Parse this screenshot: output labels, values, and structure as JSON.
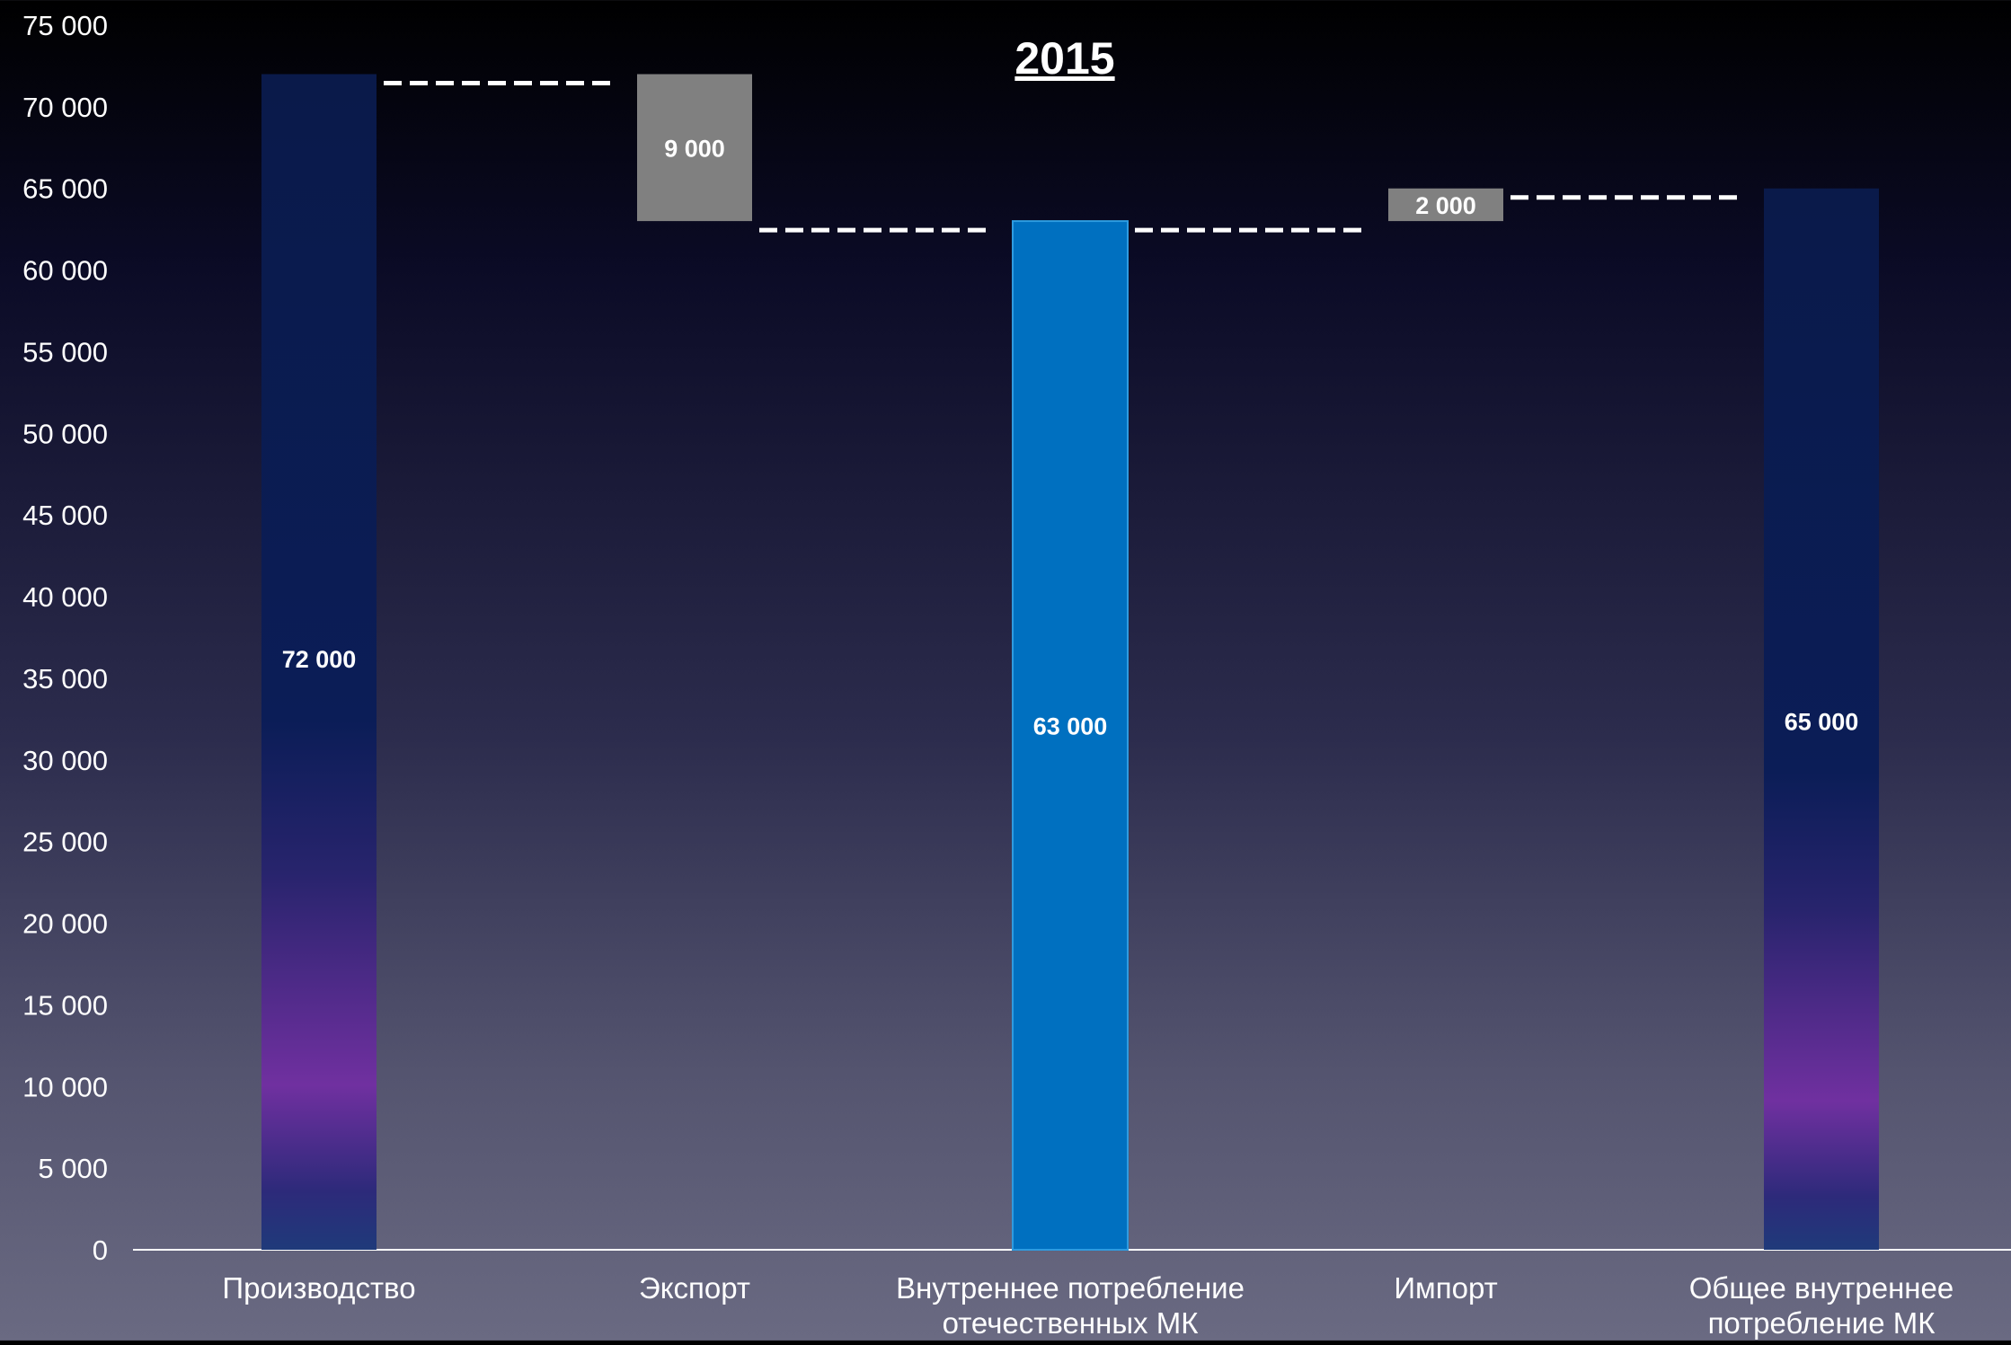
{
  "chart_data": {
    "type": "bar",
    "subtype": "waterfall",
    "title": "2015",
    "categories": [
      "Производство",
      "Экспорт",
      "Внутреннее потребление отечественных МК",
      "Импорт",
      "Общее внутреннее потребление МК"
    ],
    "category_label_lines": [
      [
        "Производство"
      ],
      [
        "Экспорт"
      ],
      [
        "Внутреннее потребление",
        "отечественных МК"
      ],
      [
        "Импорт"
      ],
      [
        "Общее внутреннее",
        "потребление МК"
      ]
    ],
    "bars": [
      {
        "category": "Производство",
        "base": 0,
        "top": 72000,
        "value": 72000,
        "label": "72 000",
        "style": "total-gradient"
      },
      {
        "category": "Экспорт",
        "base": 63000,
        "top": 72000,
        "value": 9000,
        "label": "9 000",
        "style": "delta-gray"
      },
      {
        "category": "Внутреннее потребление отечественных МК",
        "base": 0,
        "top": 63000,
        "value": 63000,
        "label": "63 000",
        "style": "total-blue"
      },
      {
        "category": "Импорт",
        "base": 63000,
        "top": 65000,
        "value": 2000,
        "label": "2 000",
        "style": "delta-gray"
      },
      {
        "category": "Общее внутреннее потребление МК",
        "base": 0,
        "top": 65000,
        "value": 65000,
        "label": "65 000",
        "style": "total-gradient"
      }
    ],
    "ylim": [
      0,
      75000
    ],
    "yticks": [
      0,
      5000,
      10000,
      15000,
      20000,
      25000,
      30000,
      35000,
      40000,
      45000,
      50000,
      55000,
      60000,
      65000,
      70000,
      75000
    ],
    "ytick_labels": [
      "0",
      "5 000",
      "10 000",
      "15 000",
      "20 000",
      "25 000",
      "30 000",
      "35 000",
      "40 000",
      "45 000",
      "50 000",
      "55 000",
      "60 000",
      "65 000",
      "70 000",
      "75 000"
    ],
    "xlabel": "",
    "ylabel": "",
    "grid": false,
    "legend": "none",
    "connectors": [
      {
        "from": 0,
        "to": 1,
        "level": 72000
      },
      {
        "from": 1,
        "to": 2,
        "level": 63000
      },
      {
        "from": 2,
        "to": 3,
        "level": 63000
      },
      {
        "from": 3,
        "to": 4,
        "level": 65000
      }
    ],
    "colors": {
      "gradient_top": "#0a1a4a",
      "gradient_mid": "#1a2368",
      "gradient_purple": "#7030a0",
      "gradient_bottom": "#1f3a7a",
      "blue_bar": "#0070c0",
      "blue_bar_edge": "#2e9be0",
      "gray_bar": "#808080",
      "text": "#ffffff",
      "axis": "#ffffff"
    }
  }
}
